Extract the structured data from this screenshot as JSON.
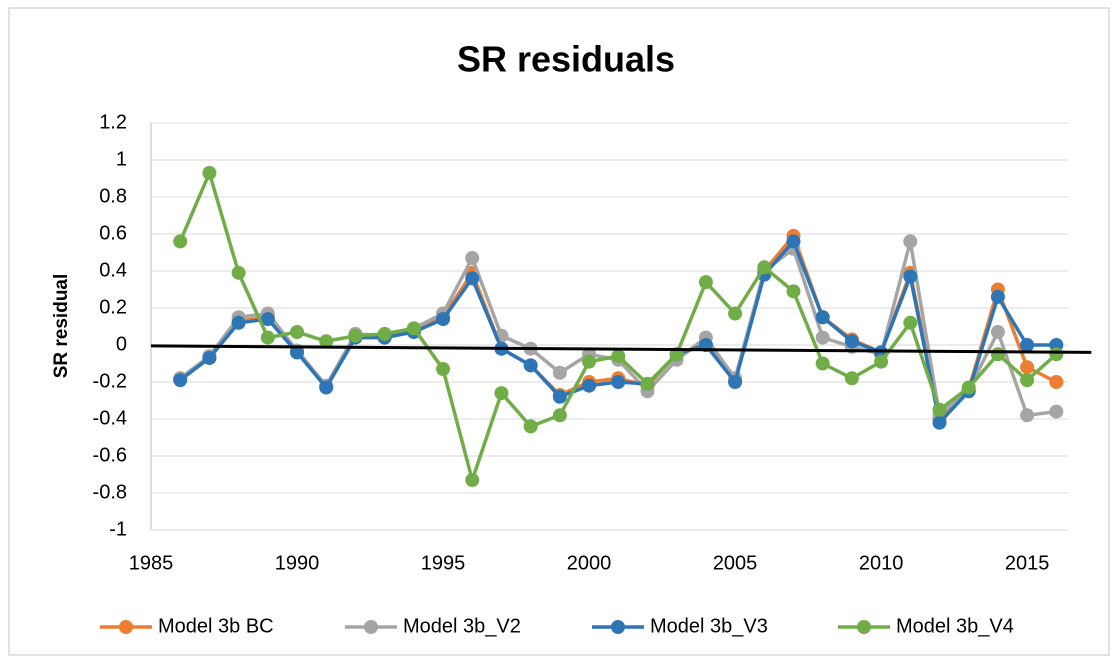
{
  "chart_data": {
    "type": "line",
    "title": "SR residuals",
    "y_label": "SR residual",
    "x": [
      1986,
      1987,
      1988,
      1989,
      1990,
      1991,
      1992,
      1993,
      1994,
      1995,
      1996,
      1997,
      1998,
      1999,
      2000,
      2001,
      2002,
      2003,
      2004,
      2005,
      2006,
      2007,
      2008,
      2009,
      2010,
      2011,
      2012,
      2013,
      2014,
      2015,
      2016
    ],
    "series": [
      {
        "name": "Model 3b BC",
        "color": "#ed7d31",
        "values": [
          -0.18,
          -0.07,
          0.13,
          0.15,
          -0.04,
          -0.22,
          0.05,
          0.04,
          0.08,
          0.15,
          0.39,
          -0.02,
          -0.11,
          -0.27,
          -0.2,
          -0.18,
          -0.22,
          -0.05,
          0.0,
          -0.19,
          0.4,
          0.59,
          0.15,
          0.03,
          -0.04,
          0.39,
          -0.4,
          -0.24,
          0.3,
          -0.12,
          -0.2
        ]
      },
      {
        "name": "Model 3b_V2",
        "color": "#a5a5a5",
        "values": [
          -0.18,
          -0.06,
          0.15,
          0.17,
          -0.03,
          -0.22,
          0.06,
          0.05,
          0.09,
          0.17,
          0.47,
          0.05,
          -0.02,
          -0.15,
          -0.05,
          -0.08,
          -0.25,
          -0.08,
          0.04,
          -0.18,
          0.4,
          0.52,
          0.04,
          -0.01,
          -0.05,
          0.56,
          -0.38,
          -0.24,
          0.07,
          -0.38,
          -0.36
        ]
      },
      {
        "name": "Model 3b_V3",
        "color": "#2e75b6",
        "values": [
          -0.19,
          -0.07,
          0.12,
          0.14,
          -0.04,
          -0.23,
          0.04,
          0.04,
          0.07,
          0.14,
          0.36,
          -0.02,
          -0.11,
          -0.28,
          -0.22,
          -0.2,
          -0.21,
          -0.05,
          0.0,
          -0.2,
          0.38,
          0.56,
          0.15,
          0.02,
          -0.04,
          0.37,
          -0.42,
          -0.25,
          0.26,
          0.0,
          0.0
        ]
      },
      {
        "name": "Model 3b_V4",
        "color": "#70ad47",
        "values": [
          0.56,
          0.93,
          0.39,
          0.04,
          0.07,
          0.02,
          0.05,
          0.06,
          0.09,
          -0.13,
          -0.73,
          -0.26,
          -0.44,
          -0.38,
          -0.09,
          -0.06,
          -0.21,
          -0.05,
          0.34,
          0.17,
          0.42,
          0.29,
          -0.1,
          -0.18,
          -0.09,
          0.12,
          -0.35,
          -0.23,
          -0.05,
          -0.19,
          -0.05
        ]
      }
    ],
    "trendline": {
      "color": "#000000",
      "x": [
        1985,
        2017.2
      ],
      "values": [
        -0.005,
        -0.04
      ]
    },
    "xlim": [
      1985,
      2016.4
    ],
    "xticks": [
      1985,
      1990,
      1995,
      2000,
      2005,
      2010,
      2015
    ],
    "ylim": [
      -1,
      1.2
    ],
    "yticks": [
      -1,
      -0.8,
      -0.6,
      -0.4,
      -0.2,
      0,
      0.2,
      0.4,
      0.6,
      0.8,
      1,
      1.2
    ],
    "grid": true,
    "legend": "bottom"
  }
}
